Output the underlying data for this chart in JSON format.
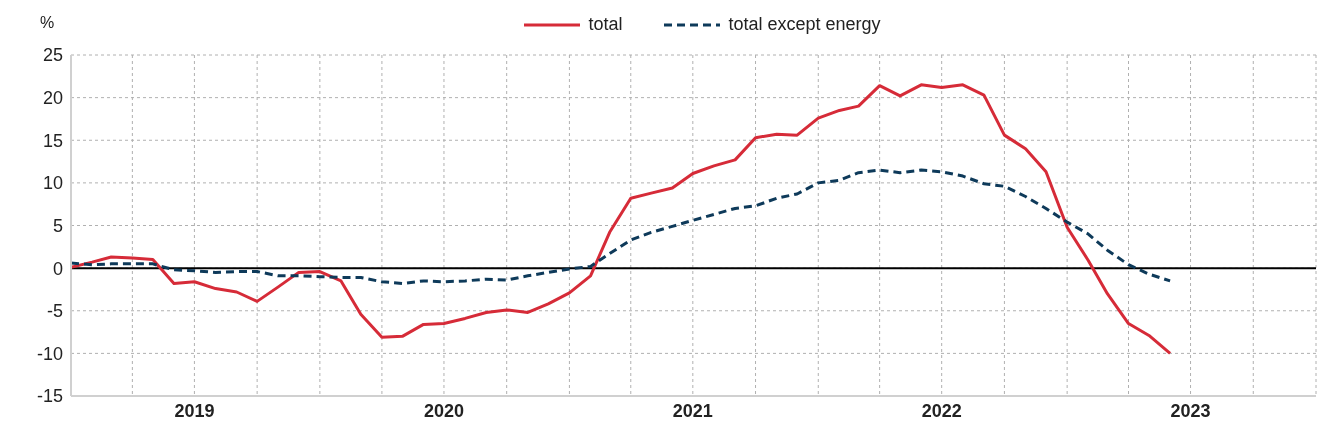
{
  "chart_data": {
    "type": "line",
    "ylabel": "%",
    "legend": "top",
    "grid": true,
    "marker": "none",
    "x": [
      "2019-01",
      "2019-02",
      "2019-03",
      "2019-04",
      "2019-05",
      "2019-06",
      "2019-07",
      "2019-08",
      "2019-09",
      "2019-10",
      "2019-11",
      "2019-12",
      "2020-01",
      "2020-02",
      "2020-03",
      "2020-04",
      "2020-05",
      "2020-06",
      "2020-07",
      "2020-08",
      "2020-09",
      "2020-10",
      "2020-11",
      "2020-12",
      "2021-01",
      "2021-02",
      "2021-03",
      "2021-04",
      "2021-05",
      "2021-06",
      "2021-07",
      "2021-08",
      "2021-09",
      "2021-10",
      "2021-11",
      "2021-12",
      "2022-01",
      "2022-02",
      "2022-03",
      "2022-04",
      "2022-05",
      "2022-06",
      "2022-07",
      "2022-08",
      "2022-09",
      "2022-10",
      "2022-11",
      "2022-12",
      "2023-01",
      "2023-02",
      "2023-03",
      "2023-04",
      "2023-05",
      "2023-06"
    ],
    "series": [
      {
        "name": "total",
        "color": "#d62b38",
        "line_style": "solid",
        "values": [
          0.1,
          0.7,
          1.3,
          1.2,
          1.0,
          -1.8,
          -1.6,
          -2.4,
          -2.8,
          -3.9,
          -2.2,
          -0.5,
          -0.4,
          -1.5,
          -5.4,
          -8.1,
          -8.0,
          -6.6,
          -6.5,
          -5.9,
          -5.2,
          -4.9,
          -5.2,
          -4.2,
          -2.9,
          -0.9,
          4.2,
          8.2,
          8.8,
          9.4,
          11.1,
          12.0,
          12.7,
          15.3,
          15.7,
          15.6,
          17.6,
          18.5,
          19.0,
          21.4,
          20.2,
          21.5,
          21.2,
          21.5,
          20.3,
          15.6,
          14.0,
          11.3,
          4.8,
          0.9,
          -3.0,
          -6.5,
          -7.9,
          -10.0
        ]
      },
      {
        "name": "total except energy",
        "color": "#0e3a5a",
        "line_style": "dashed",
        "values": [
          0.6,
          0.4,
          0.5,
          0.5,
          0.5,
          -0.2,
          -0.3,
          -0.5,
          -0.4,
          -0.4,
          -0.9,
          -0.9,
          -1.0,
          -1.1,
          -1.1,
          -1.6,
          -1.8,
          -1.5,
          -1.6,
          -1.5,
          -1.3,
          -1.4,
          -0.9,
          -0.5,
          -0.1,
          0.2,
          1.7,
          3.3,
          4.2,
          4.9,
          5.6,
          6.3,
          7.0,
          7.3,
          8.2,
          8.7,
          10.0,
          10.3,
          11.2,
          11.5,
          11.2,
          11.5,
          11.3,
          10.8,
          9.9,
          9.6,
          8.4,
          7.0,
          5.4,
          4.0,
          2.1,
          0.4,
          -0.7,
          -1.5
        ]
      }
    ],
    "xlim": [
      "2019-01",
      "2024-01"
    ],
    "xticks": [
      {
        "value": "2019-01",
        "label": null
      },
      {
        "value": "2019-04",
        "label": null
      },
      {
        "value": "2019-07",
        "label": "2019"
      },
      {
        "value": "2019-10",
        "label": null
      },
      {
        "value": "2020-01",
        "label": null
      },
      {
        "value": "2020-04",
        "label": null
      },
      {
        "value": "2020-07",
        "label": "2020"
      },
      {
        "value": "2020-10",
        "label": null
      },
      {
        "value": "2021-01",
        "label": null
      },
      {
        "value": "2021-04",
        "label": null
      },
      {
        "value": "2021-07",
        "label": "2021"
      },
      {
        "value": "2021-10",
        "label": null
      },
      {
        "value": "2022-01",
        "label": null
      },
      {
        "value": "2022-04",
        "label": null
      },
      {
        "value": "2022-07",
        "label": "2022"
      },
      {
        "value": "2022-10",
        "label": null
      },
      {
        "value": "2023-01",
        "label": null
      },
      {
        "value": "2023-04",
        "label": null
      },
      {
        "value": "2023-07",
        "label": "2023"
      },
      {
        "value": "2023-10",
        "label": null
      },
      {
        "value": "2024-01",
        "label": null
      }
    ],
    "ylim": [
      -15,
      25
    ],
    "yticks": [
      -15,
      -10,
      -5,
      0,
      5,
      10,
      15,
      20,
      25
    ],
    "ref_lines": [
      {
        "axis": "y",
        "value": 0,
        "color": "#000000",
        "line_style": "solid"
      }
    ]
  }
}
